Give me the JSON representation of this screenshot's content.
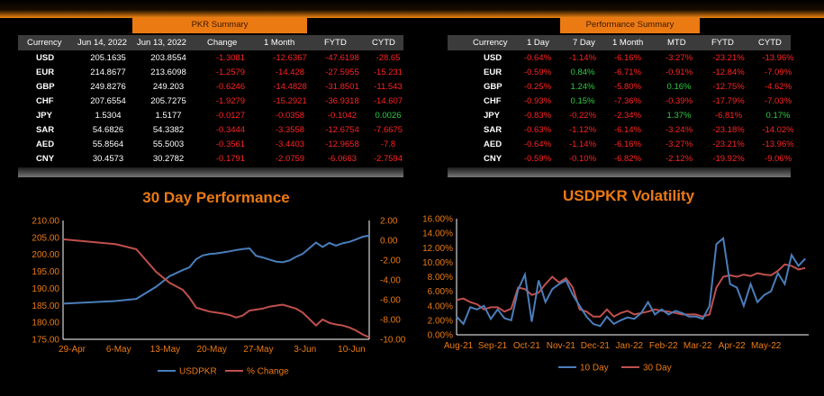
{
  "pkr_summary": {
    "title": "PKR Summary",
    "headers": [
      "Currency",
      "Jun 14, 2022",
      "Jun 13, 2022",
      "Change",
      "1 Month",
      "FYTD",
      "CYTD"
    ],
    "rows": [
      [
        "USD",
        "205.1635",
        "203.8554",
        "-1.3081",
        "-12.6367",
        "-47.6198",
        "-28.65"
      ],
      [
        "EUR",
        "214.8677",
        "213.6098",
        "-1.2579",
        "-14.428",
        "-27.5955",
        "-15.231"
      ],
      [
        "GBP",
        "249.8276",
        "249.203",
        "-0.6246",
        "-14.4828",
        "-31.8501",
        "-11.543"
      ],
      [
        "CHF",
        "207.6554",
        "205.7275",
        "-1.9279",
        "-15.2921",
        "-36.9318",
        "-14.607"
      ],
      [
        "JPY",
        "1.5304",
        "1.5177",
        "-0.0127",
        "-0.0358",
        "-0.1042",
        "0.0026"
      ],
      [
        "SAR",
        "54.6826",
        "54.3382",
        "-0.3444",
        "-3.3558",
        "-12.6754",
        "-7.6675"
      ],
      [
        "AED",
        "55.8564",
        "55.5003",
        "-0.3561",
        "-3.4403",
        "-12.9658",
        "-7.8"
      ],
      [
        "CNY",
        "30.4573",
        "30.2782",
        "-0.1791",
        "-2.0759",
        "-6.0663",
        "-2.7594"
      ]
    ]
  },
  "performance_summary": {
    "title": "Performance Summary",
    "headers": [
      "Currency",
      "1 Day",
      "7 Day",
      "1 Month",
      "MTD",
      "FYTD",
      "CYTD"
    ],
    "rows": [
      [
        "USD",
        "-0.64%",
        "-1.14%",
        "-6.16%",
        "-3.27%",
        "-23.21%",
        "-13.96%"
      ],
      [
        "EUR",
        "-0.59%",
        "0.84%",
        "-6.71%",
        "-0.91%",
        "-12.84%",
        "-7.09%"
      ],
      [
        "GBP",
        "-0.25%",
        "1.24%",
        "-5.80%",
        "0.16%",
        "-12.75%",
        "-4.62%"
      ],
      [
        "CHF",
        "-0.93%",
        "0.15%",
        "-7.36%",
        "-0.39%",
        "-17.79%",
        "-7.03%"
      ],
      [
        "JPY",
        "-0.83%",
        "-0.22%",
        "-2.34%",
        "1.37%",
        "-6.81%",
        "0.17%"
      ],
      [
        "SAR",
        "-0.63%",
        "-1.12%",
        "-6.14%",
        "-3.24%",
        "-23.18%",
        "-14.02%"
      ],
      [
        "AED",
        "-0.64%",
        "-1.14%",
        "-6.16%",
        "-3.27%",
        "-23.21%",
        "-13.96%"
      ],
      [
        "CNY",
        "-0.59%",
        "-0.10%",
        "-6.82%",
        "-2.12%",
        "-19.92%",
        "-9.06%"
      ]
    ]
  },
  "colors": {
    "accent": "#ec7a13",
    "positive": "#2ecc40",
    "negative": "#ff2323",
    "series_blue": "#4a7ebb",
    "series_red": "#c0504d"
  },
  "chart_data": [
    {
      "type": "line",
      "title": "30 Day Performance",
      "categories": [
        "29-Apr",
        "6-May",
        "13-May",
        "20-May",
        "27-May",
        "3-Jun",
        "10-Jun"
      ],
      "ylim": [
        175,
        210
      ],
      "yticks": [
        "175.00",
        "180.00",
        "185.00",
        "190.00",
        "195.00",
        "200.00",
        "205.00",
        "210.00"
      ],
      "y2lim": [
        -10,
        2
      ],
      "y2ticks": [
        "-10.00",
        "-8.00",
        "-6.00",
        "-4.00",
        "-2.00",
        "0.00",
        "2.00"
      ],
      "x_day_range": [
        0,
        46
      ],
      "series": [
        {
          "name": "USDPKR",
          "axis": "left",
          "x": [
            0,
            8,
            11,
            14,
            16,
            18,
            19,
            20,
            21,
            22,
            23,
            24,
            25,
            26,
            27,
            28,
            29,
            30,
            31,
            32,
            33,
            34,
            35,
            36,
            38,
            39,
            40,
            41,
            42,
            43,
            44,
            45,
            46
          ],
          "values": [
            185.5,
            186.3,
            186.9,
            190.5,
            193.6,
            195.4,
            196.2,
            198.6,
            199.7,
            200.1,
            200.3,
            200.6,
            200.9,
            201.3,
            201.6,
            201.8,
            199.6,
            199.1,
            198.5,
            197.9,
            197.7,
            198.2,
            199.3,
            200.2,
            203.5,
            202.2,
            203.4,
            202.6,
            203.3,
            203.7,
            204.4,
            205.2,
            205.6
          ]
        },
        {
          "name": "% Change",
          "axis": "right",
          "x": [
            0,
            8,
            11,
            14,
            16,
            18,
            19,
            20,
            21,
            22,
            23,
            24,
            25,
            26,
            27,
            28,
            29,
            30,
            31,
            32,
            33,
            34,
            35,
            36,
            38,
            39,
            40,
            41,
            42,
            43,
            44,
            45,
            46
          ],
          "values": [
            0.1,
            -0.4,
            -0.9,
            -3.2,
            -4.3,
            -5.0,
            -5.8,
            -6.8,
            -7.0,
            -7.2,
            -7.3,
            -7.4,
            -7.55,
            -7.8,
            -7.6,
            -7.1,
            -7.0,
            -6.9,
            -6.7,
            -6.6,
            -6.5,
            -6.7,
            -6.9,
            -7.3,
            -8.6,
            -8.0,
            -8.35,
            -8.5,
            -8.6,
            -8.8,
            -9.1,
            -9.5,
            -9.8
          ]
        }
      ],
      "legend": "bottom"
    },
    {
      "type": "line",
      "title": "USDPKR Volatility",
      "categories": [
        "Aug-21",
        "Sep-21",
        "Oct-21",
        "Nov-21",
        "Dec-21",
        "Jan-22",
        "Feb-22",
        "Mar-22",
        "Apr-22",
        "May-22"
      ],
      "ylim": [
        0,
        16
      ],
      "yticks": [
        "0.00%",
        "2.00%",
        "4.00%",
        "6.00%",
        "8.00%",
        "10.00%",
        "12.00%",
        "14.00%",
        "16.00%"
      ],
      "x_month_range": [
        0,
        10.3
      ],
      "series": [
        {
          "name": "10 Day",
          "x": [
            0,
            0.2,
            0.4,
            0.6,
            0.8,
            1.0,
            1.2,
            1.4,
            1.6,
            1.8,
            2.0,
            2.2,
            2.4,
            2.6,
            2.8,
            3.0,
            3.2,
            3.4,
            3.6,
            3.8,
            4.0,
            4.2,
            4.4,
            4.6,
            4.8,
            5.0,
            5.2,
            5.4,
            5.6,
            5.8,
            6.0,
            6.2,
            6.4,
            6.6,
            6.8,
            7.0,
            7.2,
            7.4,
            7.6,
            7.8,
            8.0,
            8.2,
            8.4,
            8.6,
            8.8,
            9.0,
            9.2,
            9.4,
            9.6,
            9.8,
            10.0,
            10.2
          ],
          "values": [
            2.5,
            1.5,
            3.8,
            3.5,
            4.0,
            2.2,
            3.5,
            2.3,
            2.0,
            6.2,
            8.3,
            1.8,
            7.5,
            4.5,
            6.3,
            7.0,
            7.5,
            5.5,
            4.0,
            2.5,
            1.5,
            1.2,
            2.5,
            1.5,
            2.0,
            2.4,
            2.2,
            3.0,
            4.5,
            2.8,
            3.5,
            2.8,
            3.3,
            3.0,
            2.5,
            2.5,
            2.2,
            4.0,
            12.5,
            13.3,
            7.0,
            6.5,
            4.0,
            7.0,
            4.5,
            5.5,
            6.0,
            8.5,
            7.0,
            11.0,
            9.5,
            10.5
          ]
        },
        {
          "name": "30 Day",
          "x": [
            0,
            0.2,
            0.4,
            0.6,
            0.8,
            1.0,
            1.2,
            1.4,
            1.6,
            1.8,
            2.0,
            2.2,
            2.4,
            2.6,
            2.8,
            3.0,
            3.2,
            3.4,
            3.6,
            3.8,
            4.0,
            4.2,
            4.4,
            4.6,
            4.8,
            5.0,
            5.2,
            5.4,
            5.6,
            5.8,
            6.0,
            6.2,
            6.4,
            6.6,
            6.8,
            7.0,
            7.2,
            7.4,
            7.6,
            7.8,
            8.0,
            8.2,
            8.4,
            8.6,
            8.8,
            9.0,
            9.2,
            9.4,
            9.6,
            9.8,
            10.0,
            10.2
          ],
          "values": [
            4.8,
            5.0,
            4.5,
            4.2,
            3.5,
            3.8,
            3.8,
            3.2,
            3.6,
            6.5,
            6.3,
            5.5,
            5.8,
            7.0,
            8.0,
            7.2,
            7.8,
            6.5,
            3.5,
            3.2,
            2.5,
            2.5,
            3.5,
            2.5,
            3.0,
            3.3,
            2.8,
            3.0,
            3.2,
            3.5,
            3.3,
            3.2,
            3.0,
            2.8,
            2.8,
            2.8,
            2.5,
            2.8,
            6.5,
            8.0,
            8.2,
            8.0,
            8.3,
            8.1,
            8.5,
            8.3,
            8.2,
            8.8,
            9.7,
            9.5,
            9.0,
            9.2
          ]
        }
      ],
      "legend": "bottom"
    }
  ]
}
